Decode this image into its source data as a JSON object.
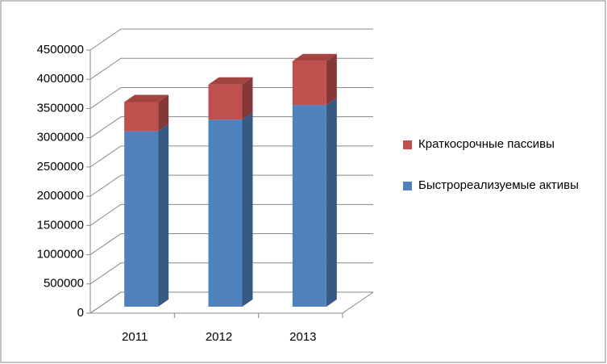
{
  "chart_data": {
    "type": "bar3d_stacked",
    "categories": [
      "2011",
      "2012",
      "2013"
    ],
    "series": [
      {
        "name": "Быстрореализуемые активы",
        "color": "#4f81bd",
        "values": [
          3000000,
          3200000,
          3450000
        ]
      },
      {
        "name": "Краткосрочные пассивы",
        "color": "#c0504d",
        "values": [
          500000,
          600000,
          750000
        ]
      }
    ],
    "ylim": [
      0,
      4500000
    ],
    "yticks": [
      0,
      500000,
      1000000,
      1500000,
      2000000,
      2500000,
      3000000,
      3500000,
      4000000,
      4500000
    ],
    "grid": true,
    "legend": "right"
  }
}
